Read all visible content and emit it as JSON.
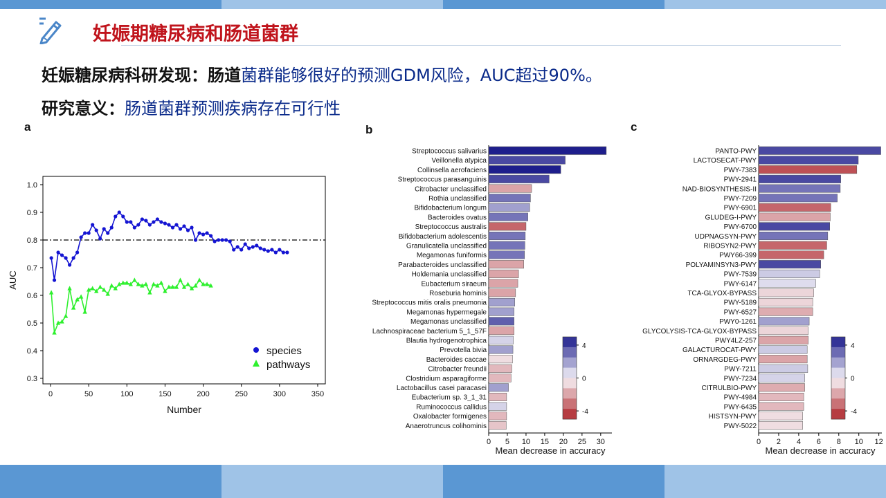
{
  "slide": {
    "title": "妊娠期糖尿病和肠道菌群",
    "finding": {
      "label": "妊娠糖尿病科研发现：",
      "highlight": "肠道",
      "text": "菌群能够很好的预测GDM风险，AUC超过90%。"
    },
    "significance": {
      "label": "研究意义：",
      "text": "肠道菌群预测疾病存在可行性"
    }
  },
  "colors": {
    "band_a": "#5a97d3",
    "band_b": "#9fc3e7",
    "title_red": "#c0141c",
    "body_blue": "#0a2a8a",
    "species_blue": "#1414d2",
    "pathways_green": "#2ef02e",
    "bar_outline": "#555555"
  },
  "icons": {
    "title_icon": "pencil-icon"
  },
  "chart_data": [
    {
      "panel": "a",
      "type": "line",
      "xlabel": "Number",
      "ylabel": "AUC",
      "xlim": [
        -10,
        360
      ],
      "ylim": [
        0.28,
        1.03
      ],
      "xticks": [
        0,
        50,
        100,
        150,
        200,
        250,
        300,
        350
      ],
      "yticks": [
        0.3,
        0.4,
        0.5,
        0.6,
        0.7,
        0.8,
        0.9,
        1.0
      ],
      "ytick_labels": [
        "0.3",
        "0.4",
        "0.5",
        "0.6",
        "0.7",
        "0.8",
        "0.9",
        "1.0"
      ],
      "reference_line": 0.8,
      "legend": {
        "position": "bottom-right"
      },
      "series": [
        {
          "name": "species",
          "marker": "circle",
          "x": [
            1,
            5,
            10,
            15,
            20,
            25,
            30,
            35,
            40,
            45,
            50,
            55,
            60,
            65,
            70,
            75,
            80,
            85,
            90,
            95,
            100,
            105,
            110,
            115,
            120,
            125,
            130,
            135,
            140,
            145,
            150,
            155,
            160,
            165,
            170,
            175,
            180,
            185,
            190,
            195,
            200,
            205,
            210,
            215,
            220,
            225,
            230,
            235,
            240,
            245,
            250,
            255,
            260,
            265,
            270,
            275,
            280,
            285,
            290,
            295,
            300,
            305,
            310
          ],
          "y": [
            0.735,
            0.655,
            0.755,
            0.745,
            0.735,
            0.71,
            0.735,
            0.755,
            0.81,
            0.825,
            0.825,
            0.855,
            0.835,
            0.805,
            0.84,
            0.825,
            0.845,
            0.885,
            0.9,
            0.885,
            0.865,
            0.865,
            0.845,
            0.855,
            0.875,
            0.87,
            0.855,
            0.865,
            0.875,
            0.865,
            0.86,
            0.855,
            0.845,
            0.855,
            0.84,
            0.85,
            0.835,
            0.845,
            0.8,
            0.825,
            0.82,
            0.825,
            0.815,
            0.795,
            0.8,
            0.8,
            0.8,
            0.795,
            0.765,
            0.775,
            0.765,
            0.785,
            0.77,
            0.775,
            0.78,
            0.77,
            0.765,
            0.76,
            0.765,
            0.755,
            0.765,
            0.755,
            0.755
          ]
        },
        {
          "name": "pathways",
          "marker": "triangle",
          "x": [
            1,
            5,
            10,
            15,
            20,
            25,
            30,
            35,
            40,
            45,
            50,
            55,
            60,
            65,
            70,
            75,
            80,
            85,
            90,
            95,
            100,
            105,
            110,
            115,
            120,
            125,
            130,
            135,
            140,
            145,
            150,
            155,
            160,
            165,
            170,
            175,
            180,
            185,
            190,
            195,
            200,
            205,
            210
          ],
          "y": [
            0.61,
            0.465,
            0.5,
            0.505,
            0.525,
            0.625,
            0.555,
            0.585,
            0.595,
            0.54,
            0.62,
            0.625,
            0.615,
            0.63,
            0.62,
            0.605,
            0.635,
            0.625,
            0.64,
            0.645,
            0.645,
            0.64,
            0.655,
            0.64,
            0.635,
            0.64,
            0.61,
            0.64,
            0.635,
            0.645,
            0.615,
            0.63,
            0.63,
            0.63,
            0.655,
            0.63,
            0.64,
            0.625,
            0.635,
            0.655,
            0.64,
            0.64,
            0.635
          ]
        }
      ]
    },
    {
      "panel": "b",
      "type": "bar",
      "orientation": "horizontal",
      "xlabel": "Mean decrease in accuracy",
      "xlim": [
        0,
        33
      ],
      "xticks": [
        0,
        5,
        10,
        15,
        20,
        25,
        30
      ],
      "colorbar": {
        "ticks": [
          "4",
          "0",
          "-4"
        ],
        "range": [
          -5,
          5
        ]
      },
      "categories": [
        "Streptococcus salivarius",
        "Veillonella atypica",
        "Collinsella aerofaciens",
        "Streptococcus parasanguinis",
        "Citrobacter unclassified",
        "Rothia unclassified",
        "Bifidobacterium longum",
        "Bacteroides ovatus",
        "Streptococcus australis",
        "Bifidobacterium adolescentis",
        "Granulicatella unclassified",
        "Megamonas funiformis",
        "Parabacteroides unclassified",
        "Holdemania unclassified",
        "Eubacterium siraeum",
        "Roseburia hominis",
        "Streptococcus mitis oralis pneumonia",
        "Megamonas hypermegale",
        "Megamonas unclassified",
        "Lachnospiraceae bacterium 5_1_57F",
        "Blautia hydrogenotrophica",
        "Prevotella bivia",
        "Bacteroides caccae",
        "Citrobacter freundii",
        "Clostridium asparagiforme",
        "Lactobacillus casei paracasei",
        "Eubacterium sp. 3_1_31",
        "Ruminococcus callidus",
        "Oxalobacter formigenes",
        "Anaerotruncus colihominis"
      ],
      "values": [
        31.5,
        20.5,
        19.3,
        16.2,
        11.5,
        11.2,
        11.0,
        10.5,
        10.0,
        9.8,
        9.7,
        9.6,
        9.4,
        8.0,
        7.8,
        7.2,
        7.0,
        6.8,
        6.8,
        6.8,
        6.6,
        6.5,
        6.4,
        6.2,
        6.0,
        5.3,
        4.8,
        4.8,
        4.8,
        4.7
      ],
      "color_values": [
        5,
        4,
        5,
        4,
        -2,
        3,
        2,
        3,
        -3.5,
        3,
        3,
        3,
        -2,
        -2,
        -2,
        -2,
        2,
        2,
        3.5,
        -2,
        0.8,
        2,
        -0.6,
        -1.5,
        -1.5,
        2,
        -1.5,
        0.8,
        -1.5,
        -1.2
      ]
    },
    {
      "panel": "c",
      "type": "bar",
      "orientation": "horizontal",
      "xlabel": "Mean decrease in accuracy",
      "xlim": [
        0,
        12.3
      ],
      "xticks": [
        0,
        2,
        4,
        6,
        8,
        10,
        12
      ],
      "colorbar": {
        "ticks": [
          "4",
          "0",
          "-4"
        ],
        "range": [
          -5,
          5
        ]
      },
      "categories": [
        "PANTO-PWY",
        "LACTOSECAT-PWY",
        "PWY-7383",
        "PWY-2941",
        "NAD-BIOSYNTHESIS-II",
        "PWY-7209",
        "PWY-6901",
        "GLUDEG-I-PWY",
        "PWY-6700",
        "UDPNAGSYN-PWY",
        "RIBOSYN2-PWY",
        "PWY66-399",
        "POLYAMINSYN3-PWY",
        "PWY-7539",
        "PWY-6147",
        "TCA-GLYOX-BYPASS",
        "PWY-5189",
        "PWY-6527",
        "PWY0-1261",
        "GLYCOLYSIS-TCA-GLYOX-BYPASS",
        "PWY4LZ-257",
        "GALACTUROCAT-PWY",
        "ORNARGDEG-PWY",
        "PWY-7211",
        "PWY-7234",
        "CITRULBIO-PWY",
        "PWY-4984",
        "PWY-6435",
        "HISTSYN-PWY",
        "PWY-5022"
      ],
      "values": [
        12.2,
        9.95,
        9.8,
        8.2,
        8.15,
        7.85,
        7.2,
        7.15,
        7.1,
        6.9,
        6.8,
        6.5,
        6.2,
        6.1,
        5.7,
        5.5,
        5.4,
        5.4,
        5.05,
        4.95,
        4.95,
        4.85,
        4.85,
        4.9,
        4.6,
        4.6,
        4.5,
        4.5,
        4.4,
        4.4
      ],
      "color_values": [
        4,
        4,
        -4,
        4,
        3,
        3,
        -3.5,
        -2,
        4,
        3,
        -3.5,
        -3.5,
        4,
        1,
        0.6,
        -0.8,
        -0.8,
        -1.8,
        2,
        -0.8,
        -2,
        1,
        -2,
        1,
        0.8,
        -1.8,
        -1.5,
        -1.5,
        -0.6,
        -0.6
      ]
    }
  ]
}
